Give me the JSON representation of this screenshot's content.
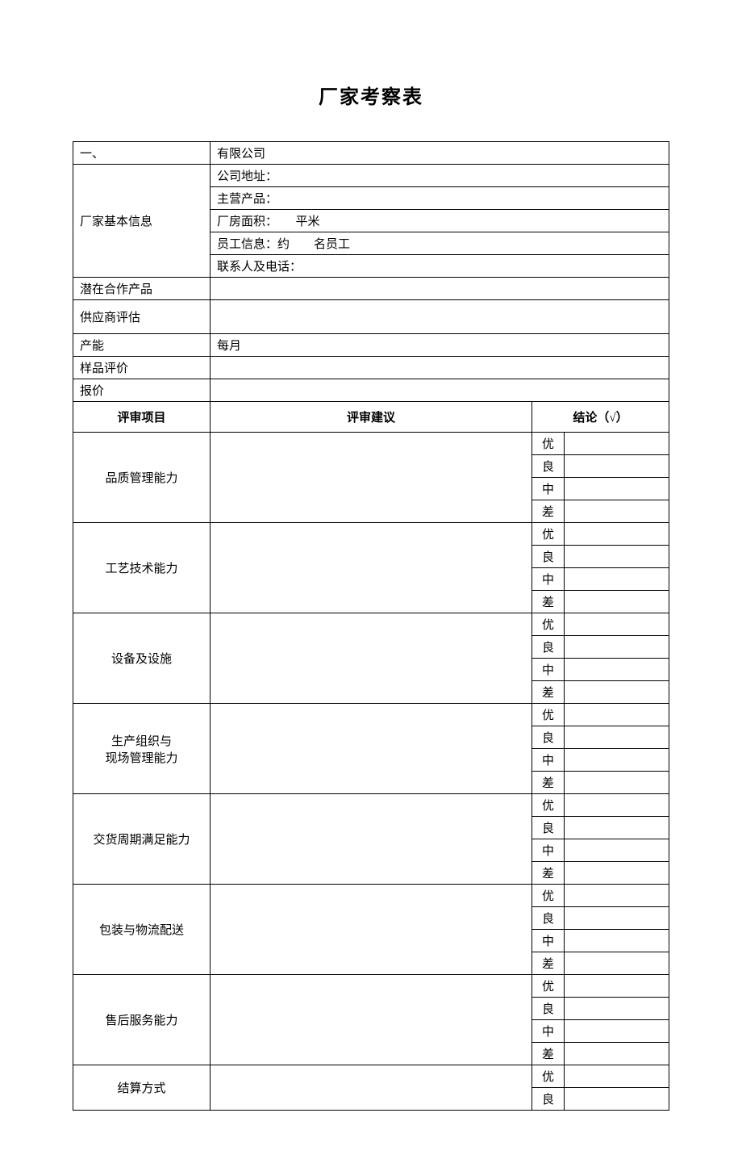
{
  "title": "厂家考察表",
  "section_number": "一、",
  "company_suffix": "有限公司",
  "basic_info": {
    "label": "厂家基本信息",
    "rows": [
      "公司地址：",
      "主营产品：",
      "厂房面积：　　平米",
      "员工信息：约　　名员工",
      "联系人及电话："
    ]
  },
  "potential_product": "潜在合作产品",
  "supplier_eval": "供应商评估",
  "capacity": {
    "label": "产能",
    "value": "每月"
  },
  "sample_eval": "样品评价",
  "quote": "报价",
  "eval_headers": {
    "item": "评审项目",
    "suggestion": "评审建议",
    "conclusion": "结论（√）"
  },
  "grades": [
    "优",
    "良",
    "中",
    "差"
  ],
  "eval_items": [
    {
      "label": "品质管理能力",
      "lines": 1
    },
    {
      "label": "工艺技术能力",
      "lines": 1
    },
    {
      "label": "设备及设施",
      "lines": 1
    },
    {
      "label_line1": "生产组织与",
      "label_line2": "现场管理能力",
      "lines": 2
    },
    {
      "label": "交货周期满足能力",
      "lines": 1
    },
    {
      "label": "包装与物流配送",
      "lines": 1
    },
    {
      "label": "售后服务能力",
      "lines": 1
    }
  ],
  "settlement": "结算方式",
  "partial_grades": [
    "优",
    "良"
  ]
}
